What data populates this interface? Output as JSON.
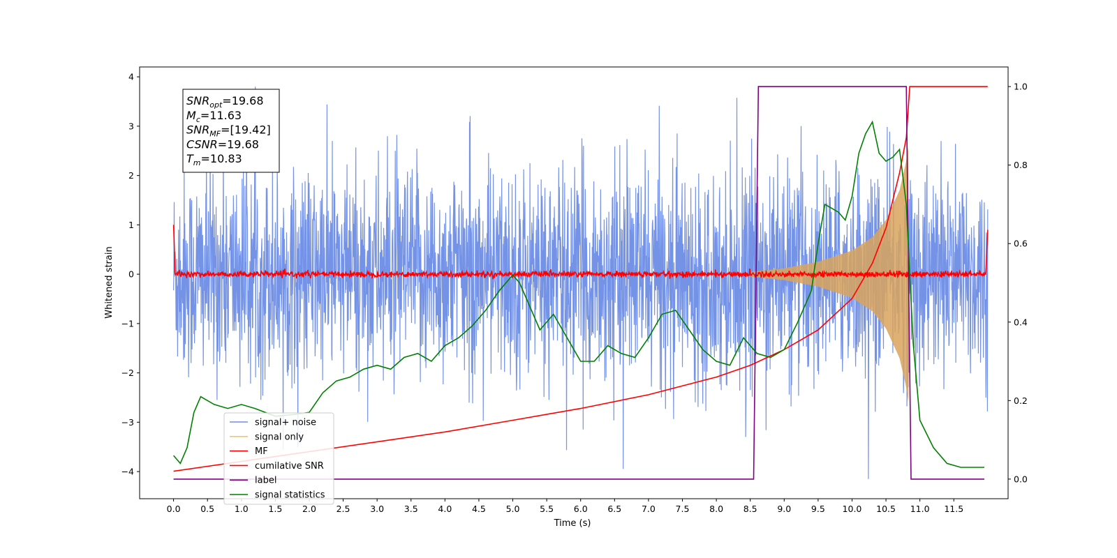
{
  "chart_data": {
    "type": "line",
    "xlabel": "Time (s)",
    "ylabel": "Whitened strain",
    "xlim": [
      -0.5,
      12.3
    ],
    "ylim": [
      -4.55,
      4.2
    ],
    "y2lim": [
      -0.05,
      1.05
    ],
    "xticks": [
      "0.0",
      "0.5",
      "1.0",
      "1.5",
      "2.0",
      "2.5",
      "3.0",
      "3.5",
      "4.0",
      "4.5",
      "5.0",
      "5.5",
      "6.0",
      "6.5",
      "7.0",
      "7.5",
      "8.0",
      "8.5",
      "9.0",
      "9.5",
      "10.0",
      "10.5",
      "11.0",
      "11.5"
    ],
    "yticks": [
      "4",
      "3",
      "2",
      "1",
      "0",
      "−1",
      "−2",
      "−3",
      "−4"
    ],
    "y2ticks": [
      "1.0",
      "0.8",
      "0.6",
      "0.4",
      "0.2",
      "0.0"
    ],
    "annotation": {
      "lines": [
        {
          "base": "SNR",
          "sub": "opt",
          "value": "=19.68"
        },
        {
          "base": "M",
          "sub": "c",
          "value": "=11.63"
        },
        {
          "base": "SNR",
          "sub": "MF",
          "value": "=[19.42]"
        },
        {
          "base": "CSNR",
          "sub": "",
          "value": "=19.68"
        },
        {
          "base": "T",
          "sub": "m",
          "value": "=10.83"
        }
      ]
    },
    "legend": {
      "placement": "lower-left",
      "entries": [
        {
          "label": "signal+ noise",
          "color": "#6d8de6"
        },
        {
          "label": "signal only",
          "color": "#f2c46b"
        },
        {
          "label": "MF",
          "color": "#ff0000"
        },
        {
          "label": "cumilative SNR",
          "color": "#ff0000"
        },
        {
          "label": "label",
          "color": "#800080"
        },
        {
          "label": "signal statistics",
          "color": "#008000"
        }
      ]
    },
    "series": [
      {
        "name": "signal+ noise",
        "axis": "left",
        "color": "#6d8de6",
        "description_value_range": [
          -4.15,
          3.8
        ],
        "x_range": [
          0,
          12.0
        ]
      },
      {
        "name": "signal only",
        "axis": "left",
        "color": "#d9a35c",
        "envelope": {
          "x": [
            8.5,
            9.0,
            9.5,
            10.0,
            10.3,
            10.5,
            10.7,
            10.8,
            10.83
          ],
          "amp": [
            0.05,
            0.12,
            0.25,
            0.48,
            0.75,
            1.1,
            1.7,
            2.3,
            2.6
          ]
        }
      },
      {
        "name": "MF",
        "axis": "left",
        "color": "#ff0000",
        "x_range": [
          0,
          12.0
        ],
        "typical_abs": 0.1,
        "edge_values": [
          1.0,
          0.9
        ]
      },
      {
        "name": "cumilative SNR",
        "axis": "right",
        "color": "#ff0000",
        "x": [
          0.0,
          1.0,
          2.0,
          3.0,
          4.0,
          5.0,
          6.0,
          7.0,
          8.0,
          8.5,
          9.0,
          9.5,
          10.0,
          10.3,
          10.5,
          10.6,
          10.7,
          10.8,
          10.85,
          12.0
        ],
        "values": [
          0.02,
          0.045,
          0.07,
          0.095,
          0.12,
          0.15,
          0.18,
          0.215,
          0.26,
          0.29,
          0.33,
          0.38,
          0.46,
          0.55,
          0.64,
          0.71,
          0.78,
          0.87,
          1.0,
          1.0
        ]
      },
      {
        "name": "label",
        "axis": "right",
        "color": "#800080",
        "x": [
          0.0,
          8.55,
          8.62,
          10.8,
          10.87,
          11.95
        ],
        "values": [
          0.0,
          0.0,
          1.0,
          1.0,
          0.0,
          0.0
        ]
      },
      {
        "name": "signal statistics",
        "axis": "right",
        "color": "#008000",
        "x": [
          0.0,
          0.1,
          0.2,
          0.3,
          0.4,
          0.5,
          0.6,
          0.8,
          1.0,
          1.2,
          1.5,
          1.8,
          2.0,
          2.2,
          2.4,
          2.6,
          2.8,
          3.0,
          3.2,
          3.4,
          3.6,
          3.8,
          4.0,
          4.2,
          4.4,
          4.6,
          4.8,
          5.0,
          5.1,
          5.2,
          5.4,
          5.6,
          5.8,
          6.0,
          6.2,
          6.4,
          6.6,
          6.8,
          7.0,
          7.2,
          7.4,
          7.6,
          7.8,
          8.0,
          8.2,
          8.4,
          8.6,
          8.8,
          9.0,
          9.2,
          9.4,
          9.5,
          9.6,
          9.7,
          9.8,
          9.9,
          10.0,
          10.1,
          10.2,
          10.3,
          10.4,
          10.5,
          10.6,
          10.7,
          10.8,
          10.9,
          11.0,
          11.2,
          11.4,
          11.6,
          11.8,
          11.95
        ],
        "values": [
          0.06,
          0.04,
          0.08,
          0.17,
          0.21,
          0.2,
          0.19,
          0.18,
          0.19,
          0.18,
          0.16,
          0.165,
          0.17,
          0.22,
          0.25,
          0.26,
          0.28,
          0.29,
          0.28,
          0.31,
          0.32,
          0.3,
          0.34,
          0.36,
          0.39,
          0.43,
          0.48,
          0.52,
          0.5,
          0.46,
          0.38,
          0.42,
          0.36,
          0.3,
          0.3,
          0.34,
          0.32,
          0.31,
          0.36,
          0.42,
          0.43,
          0.38,
          0.33,
          0.3,
          0.29,
          0.36,
          0.32,
          0.31,
          0.33,
          0.4,
          0.48,
          0.6,
          0.7,
          0.69,
          0.68,
          0.66,
          0.72,
          0.83,
          0.88,
          0.91,
          0.83,
          0.81,
          0.82,
          0.84,
          0.7,
          0.35,
          0.15,
          0.08,
          0.04,
          0.03,
          0.03,
          0.03
        ]
      }
    ]
  }
}
